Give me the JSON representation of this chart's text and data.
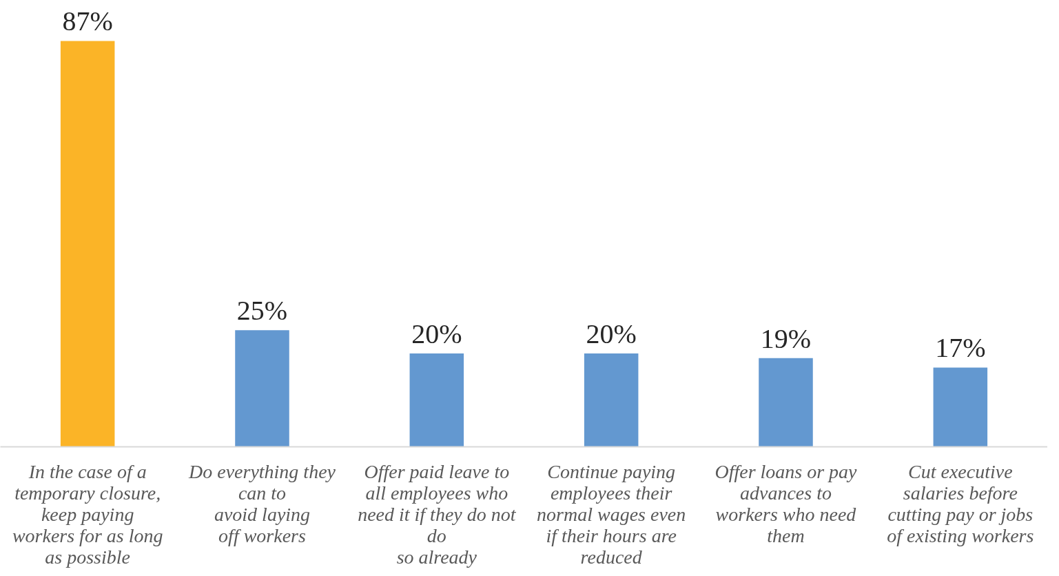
{
  "chart_data": {
    "type": "bar",
    "categories": [
      "In the case of a\ntemporary closure,\nkeep paying\nworkers for as long\nas possible",
      "Do everything they\ncan to\navoid laying\noff workers",
      "Offer paid leave to\nall employees who\nneed it if they do not\ndo\nso already",
      "Continue paying\nemployees their\nnormal wages even\nif their hours are\nreduced",
      "Offer loans or pay\nadvances to\nworkers who need\nthem",
      "Cut executive\nsalaries before\ncutting pay or jobs\nof existing workers"
    ],
    "values": [
      87,
      25,
      20,
      20,
      19,
      17
    ],
    "colors": [
      "#fbb427",
      "#6398d0",
      "#6398d0",
      "#6398d0",
      "#6398d0",
      "#6398d0"
    ],
    "value_labels": [
      "87%",
      "25%",
      "20%",
      "20%",
      "19%",
      "17%"
    ],
    "grid": false
  }
}
